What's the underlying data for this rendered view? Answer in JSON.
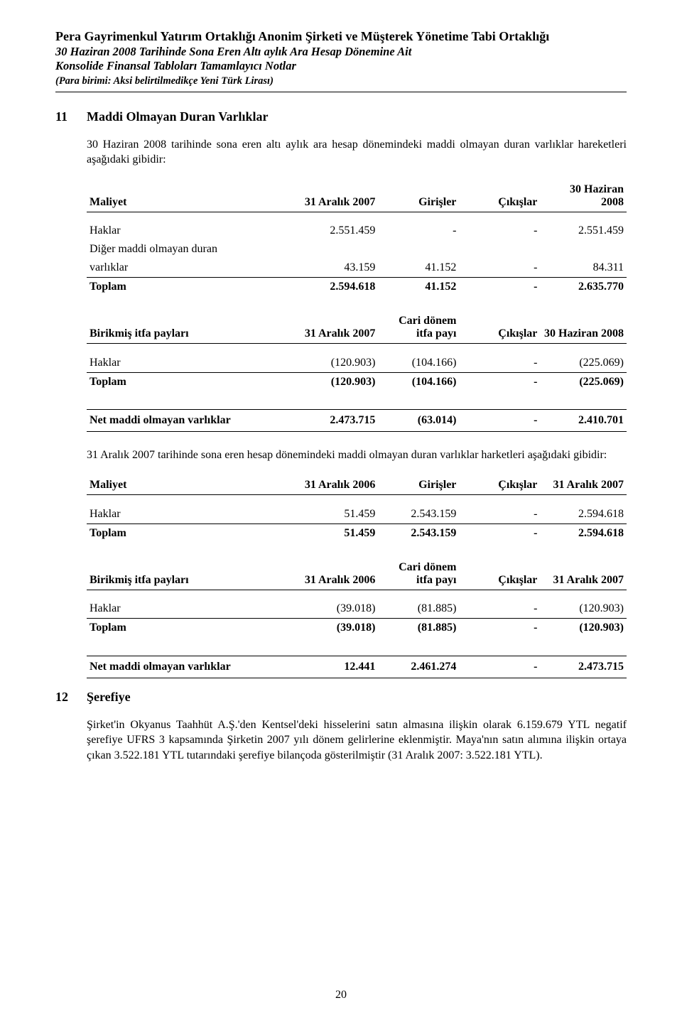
{
  "header": {
    "company": "Pera Gayrimenkul Yatırım Ortaklığı Anonim Şirketi ve Müşterek Yönetime Tabi Ortaklığı",
    "period": "30 Haziran 2008 Tarihinde Sona Eren Altı aylık Ara Hesap Dönemine Ait",
    "notes": "Konsolide Finansal Tabloları Tamamlayıcı Notlar",
    "unit": "(Para birimi: Aksi belirtilmedikçe Yeni Türk Lirası)"
  },
  "section11": {
    "num": "11",
    "title": "Maddi Olmayan Duran Varlıklar",
    "intro": "30 Haziran 2008 tarihinde sona eren altı aylık ara hesap dönemindeki maddi olmayan duran varlıklar hareketleri aşağıdaki gibidir:",
    "cost_hdr": {
      "c0": "Maliyet",
      "c1": "31 Aralık 2007",
      "c2": "Girişler",
      "c3": "Çıkışlar",
      "c4a": "30 Haziran",
      "c4b": "2008"
    },
    "cost_rows": {
      "r1": {
        "l": "Haklar",
        "v1": "2.551.459",
        "v2": "-",
        "v3": "-",
        "v4": "2.551.459"
      },
      "r2a": {
        "l": "Diğer maddi olmayan duran"
      },
      "r2b": {
        "l": "varlıklar",
        "v1": "43.159",
        "v2": "41.152",
        "v3": "-",
        "v4": "84.311"
      },
      "tot": {
        "l": "Toplam",
        "v1": "2.594.618",
        "v2": "41.152",
        "v3": "-",
        "v4": "2.635.770"
      }
    },
    "acc_hdr": {
      "c0": "Birikmiş itfa payları",
      "c1": "31 Aralık 2007",
      "c2a": "Cari dönem",
      "c2b": "itfa payı",
      "c3": "Çıkışlar",
      "c4": "30 Haziran 2008"
    },
    "acc_rows": {
      "r1": {
        "l": "Haklar",
        "v1": "(120.903)",
        "v2": "(104.166)",
        "v3": "-",
        "v4": "(225.069)"
      },
      "tot": {
        "l": "Toplam",
        "v1": "(120.903)",
        "v2": "(104.166)",
        "v3": "-",
        "v4": "(225.069)"
      }
    },
    "net": {
      "l": "Net maddi olmayan varlıklar",
      "v1": "2.473.715",
      "v2": "(63.014)",
      "v3": "-",
      "v4": "2.410.701"
    },
    "intro2": "31 Aralık 2007 tarihinde sona eren hesap dönemindeki maddi olmayan duran varlıklar harketleri aşağıdaki gibidir:",
    "cost2_hdr": {
      "c0": "Maliyet",
      "c1": "31 Aralık 2006",
      "c2": "Girişler",
      "c3": "Çıkışlar",
      "c4": "31 Aralık 2007"
    },
    "cost2_rows": {
      "r1": {
        "l": "Haklar",
        "v1": "51.459",
        "v2": "2.543.159",
        "v3": "-",
        "v4": "2.594.618"
      },
      "tot": {
        "l": "Toplam",
        "v1": "51.459",
        "v2": "2.543.159",
        "v3": "-",
        "v4": "2.594.618"
      }
    },
    "acc2_hdr": {
      "c0": "Birikmiş itfa payları",
      "c1": "31 Aralık 2006",
      "c2a": "Cari dönem",
      "c2b": "itfa payı",
      "c3": "Çıkışlar",
      "c4": "31 Aralık 2007"
    },
    "acc2_rows": {
      "r1": {
        "l": "Haklar",
        "v1": "(39.018)",
        "v2": "(81.885)",
        "v3": "-",
        "v4": "(120.903)"
      },
      "tot": {
        "l": "Toplam",
        "v1": "(39.018)",
        "v2": "(81.885)",
        "v3": "-",
        "v4": "(120.903)"
      }
    },
    "net2": {
      "l": "Net maddi olmayan varlıklar",
      "v1": "12.441",
      "v2": "2.461.274",
      "v3": "-",
      "v4": "2.473.715"
    }
  },
  "section12": {
    "num": "12",
    "title": "Şerefiye",
    "body": "Şirket'in Okyanus Taahhüt A.Ş.'den Kentsel'deki hisselerini satın almasına ilişkin olarak 6.159.679 YTL negatif şerefiye UFRS 3 kapsamında Şirketin 2007 yılı dönem gelirlerine eklenmiştir. Maya'nın satın alımına ilişkin ortaya çıkan 3.522.181 YTL tutarındaki şerefiye bilançoda gösterilmiştir (31 Aralık 2007: 3.522.181 YTL)."
  },
  "pageNum": "20"
}
